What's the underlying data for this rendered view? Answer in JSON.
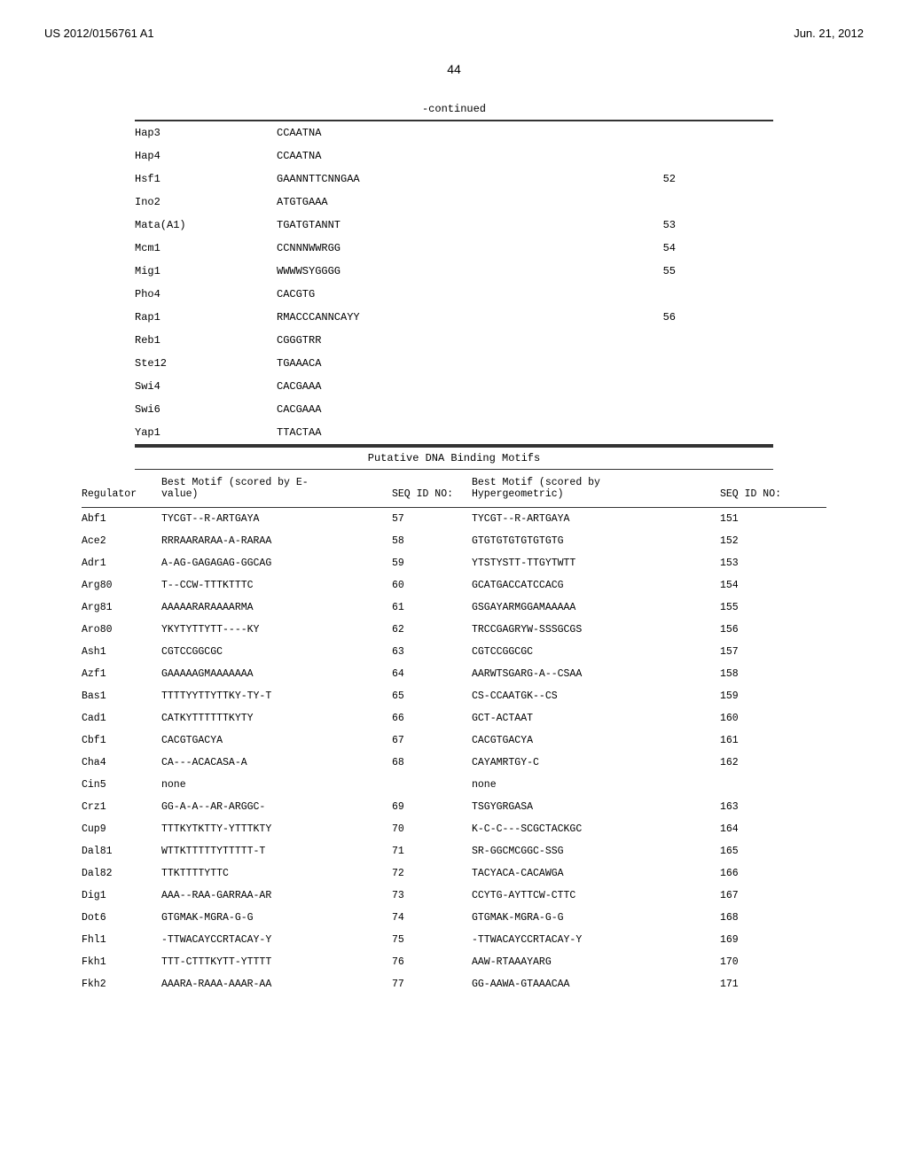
{
  "header": {
    "left": "US 2012/0156761 A1",
    "right": "Jun. 21, 2012"
  },
  "page_number": "44",
  "continued_label": "-continued",
  "motif_rows": [
    {
      "name": "Hap3",
      "seq": "CCAATNA",
      "seqid": ""
    },
    {
      "name": "Hap4",
      "seq": "CCAATNA",
      "seqid": ""
    },
    {
      "name": "Hsf1",
      "seq": "GAANNTTCNNGAA",
      "seqid": "52"
    },
    {
      "name": "Ino2",
      "seq": "ATGTGAAA",
      "seqid": ""
    },
    {
      "name": "Mata(A1)",
      "seq": "TGATGTANNT",
      "seqid": "53"
    },
    {
      "name": "Mcm1",
      "seq": "CCNNNWWRGG",
      "seqid": "54"
    },
    {
      "name": "Mig1",
      "seq": "WWWWSYGGGG",
      "seqid": "55"
    },
    {
      "name": "Pho4",
      "seq": "CACGTG",
      "seqid": ""
    },
    {
      "name": "Rap1",
      "seq": "RMACCCANNCAYY",
      "seqid": "56"
    },
    {
      "name": "Reb1",
      "seq": "CGGGTRR",
      "seqid": ""
    },
    {
      "name": "Ste12",
      "seq": "TGAAACA",
      "seqid": ""
    },
    {
      "name": "Swi4",
      "seq": "CACGAAA",
      "seqid": ""
    },
    {
      "name": "Swi6",
      "seq": "CACGAAA",
      "seqid": ""
    },
    {
      "name": "Yap1",
      "seq": "TTACTAA",
      "seqid": ""
    }
  ],
  "section_header": "Putative DNA Binding Motifs",
  "putative_header": {
    "regulator": "Regulator",
    "motif1_label1": "Best Motif (scored by E-",
    "motif1_label2": "value)",
    "seqid1": "SEQ ID NO:",
    "motif2_label1": "Best Motif (scored by",
    "motif2_label2": "Hypergeometric)",
    "seqid2": "SEQ ID NO:"
  },
  "putative_rows": [
    {
      "reg": "Abf1",
      "motif1": "TYCGT--R-ARTGAYA",
      "seqid1": "57",
      "motif2": "TYCGT--R-ARTGAYA",
      "seqid2": "151"
    },
    {
      "reg": "Ace2",
      "motif1": "RRRAARARAA-A-RARAA",
      "seqid1": "58",
      "motif2": "GTGTGTGTGTGTGTG",
      "seqid2": "152"
    },
    {
      "reg": "Adr1",
      "motif1": "A-AG-GAGAGAG-GGCAG",
      "seqid1": "59",
      "motif2": "YTSTYSTT-TTGYTWTT",
      "seqid2": "153"
    },
    {
      "reg": "Arg80",
      "motif1": "T--CCW-TTTKTTTC",
      "seqid1": "60",
      "motif2": "GCATGACCATCCACG",
      "seqid2": "154"
    },
    {
      "reg": "Arg81",
      "motif1": "AAAAARARAAAARMA",
      "seqid1": "61",
      "motif2": "GSGAYARMGGAMAAAAA",
      "seqid2": "155"
    },
    {
      "reg": "Aro80",
      "motif1": "YKYTYTTYTT----KY",
      "seqid1": "62",
      "motif2": "TRCCGAGRYW-SSSGCGS",
      "seqid2": "156"
    },
    {
      "reg": "Ash1",
      "motif1": "CGTCCGGCGC",
      "seqid1": "63",
      "motif2": "CGTCCGGCGC",
      "seqid2": "157"
    },
    {
      "reg": "Azf1",
      "motif1": "GAAAAAGMAAAAAAA",
      "seqid1": "64",
      "motif2": "AARWTSGARG-A--CSAA",
      "seqid2": "158"
    },
    {
      "reg": "Bas1",
      "motif1": "TTTTYYTTYTTKY-TY-T",
      "seqid1": "65",
      "motif2": "CS-CCAATGK--CS",
      "seqid2": "159"
    },
    {
      "reg": "Cad1",
      "motif1": "CATKYTTTTTTKYTY",
      "seqid1": "66",
      "motif2": "GCT-ACTAAT",
      "seqid2": "160"
    },
    {
      "reg": "Cbf1",
      "motif1": "CACGTGACYA",
      "seqid1": "67",
      "motif2": "CACGTGACYA",
      "seqid2": "161"
    },
    {
      "reg": "Cha4",
      "motif1": "CA---ACACASA-A",
      "seqid1": "68",
      "motif2": "CAYAMRTGY-C",
      "seqid2": "162"
    },
    {
      "reg": "Cin5",
      "motif1": "none",
      "seqid1": "",
      "motif2": "none",
      "seqid2": ""
    },
    {
      "reg": "Crz1",
      "motif1": "GG-A-A--AR-ARGGC-",
      "seqid1": "69",
      "motif2": "TSGYGRGASA",
      "seqid2": "163"
    },
    {
      "reg": "Cup9",
      "motif1": "TTTKYTKTTY-YTTTKTY",
      "seqid1": "70",
      "motif2": "K-C-C---SCGCTACKGC",
      "seqid2": "164"
    },
    {
      "reg": "Dal81",
      "motif1": "WTTKTTTTTYTTTTT-T",
      "seqid1": "71",
      "motif2": "SR-GGCMCGGC-SSG",
      "seqid2": "165"
    },
    {
      "reg": "Dal82",
      "motif1": "TTKTTTTYTTC",
      "seqid1": "72",
      "motif2": "TACYACA-CACAWGA",
      "seqid2": "166"
    },
    {
      "reg": "Dig1",
      "motif1": "AAA--RAA-GARRAA-AR",
      "seqid1": "73",
      "motif2": "CCYTG-AYTTCW-CTTC",
      "seqid2": "167"
    },
    {
      "reg": "Dot6",
      "motif1": "GTGMAK-MGRA-G-G",
      "seqid1": "74",
      "motif2": "GTGMAK-MGRA-G-G",
      "seqid2": "168"
    },
    {
      "reg": "Fhl1",
      "motif1": "-TTWACAYCCRTACAY-Y",
      "seqid1": "75",
      "motif2": "-TTWACAYCCRTACAY-Y",
      "seqid2": "169"
    },
    {
      "reg": "Fkh1",
      "motif1": "TTT-CTTTKYTT-YTTTT",
      "seqid1": "76",
      "motif2": "AAW-RTAAAYARG",
      "seqid2": "170"
    },
    {
      "reg": "Fkh2",
      "motif1": "AAARA-RAAA-AAAR-AA",
      "seqid1": "77",
      "motif2": "GG-AAWA-GTAAACAA",
      "seqid2": "171"
    }
  ]
}
